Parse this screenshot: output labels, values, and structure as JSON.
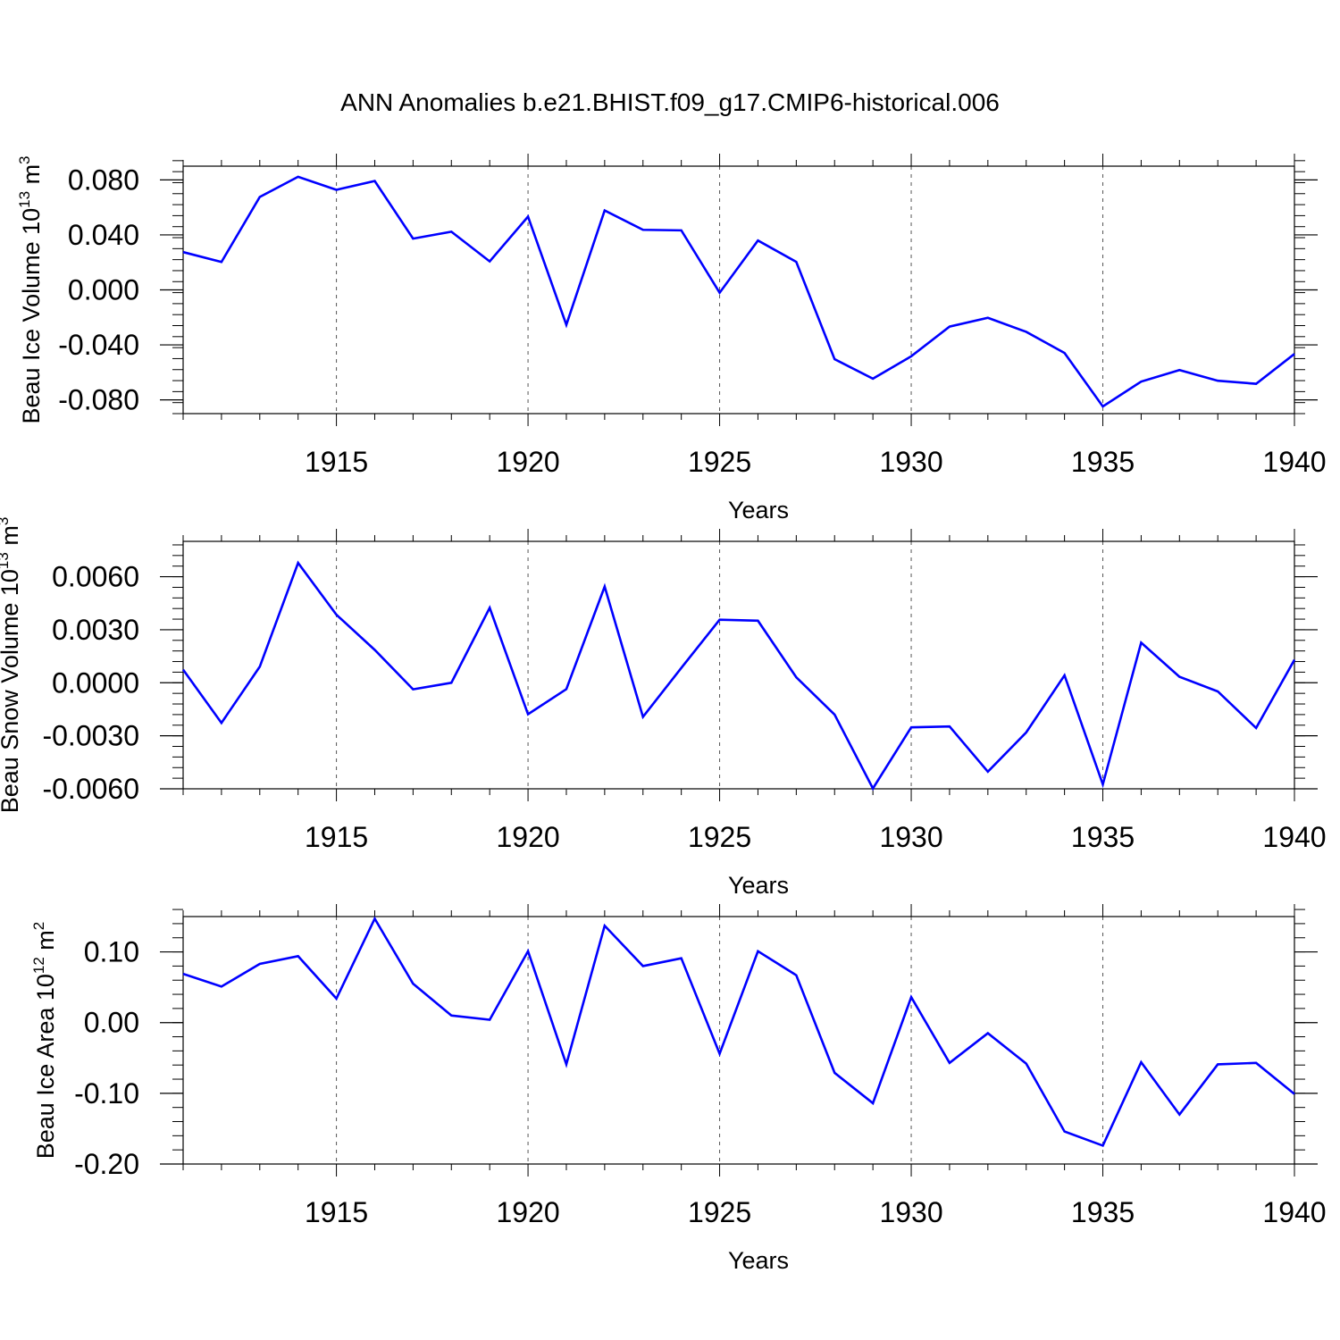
{
  "title": "ANN Anomalies b.e21.BHIST.f09_g17.CMIP6-historical.006",
  "line_color": "#0000ff",
  "chart_data": [
    {
      "type": "line",
      "ylabel": "Beau Ice Volume 10",
      "ylabel_exp": "13",
      "ylabel_unit": " m",
      "ylabel_unit_exp": "3",
      "xlabel": "Years",
      "xlim": [
        1911,
        1940
      ],
      "ylim": [
        -0.09,
        0.09
      ],
      "yticks": [
        -0.08,
        -0.04,
        0.0,
        0.04,
        0.08
      ],
      "ytick_labels": [
        "-0.080",
        "-0.040",
        "0.000",
        "0.040",
        "0.080"
      ],
      "yminor_step": 0.008,
      "xticks": [
        1915,
        1920,
        1925,
        1930,
        1935,
        1940
      ],
      "xtick_labels": [
        "1915",
        "1920",
        "1925",
        "1930",
        "1935",
        "1940"
      ],
      "x": [
        1911,
        1912,
        1913,
        1914,
        1915,
        1916,
        1917,
        1918,
        1919,
        1920,
        1921,
        1922,
        1923,
        1924,
        1925,
        1926,
        1927,
        1928,
        1929,
        1930,
        1931,
        1932,
        1933,
        1934,
        1935,
        1936,
        1937,
        1938,
        1939,
        1940
      ],
      "series": [
        {
          "name": "Beau Ice Volume",
          "values": [
            0.0275,
            0.0203,
            0.0676,
            0.0823,
            0.0728,
            0.0792,
            0.0373,
            0.0423,
            0.0207,
            0.0533,
            -0.0254,
            0.0578,
            0.0437,
            0.0433,
            -0.0021,
            0.0359,
            0.0204,
            -0.0504,
            -0.0646,
            -0.0483,
            -0.0267,
            -0.0203,
            -0.0305,
            -0.0459,
            -0.0848,
            -0.0667,
            -0.0583,
            -0.0661,
            -0.0683,
            -0.0466
          ]
        }
      ]
    },
    {
      "type": "line",
      "ylabel": "Beau Snow Volume 10",
      "ylabel_exp": "13",
      "ylabel_unit": " m",
      "ylabel_unit_exp": "3",
      "xlabel": "Years",
      "xlim": [
        1911,
        1940
      ],
      "ylim": [
        -0.006,
        0.008
      ],
      "yticks": [
        -0.006,
        -0.003,
        0.0,
        0.003,
        0.006
      ],
      "ytick_labels": [
        "-0.0060",
        "-0.0030",
        "0.0000",
        "0.0030",
        "0.0060"
      ],
      "yminor_step": 0.0006,
      "xticks": [
        1915,
        1920,
        1925,
        1930,
        1935,
        1940
      ],
      "xtick_labels": [
        "1915",
        "1920",
        "1925",
        "1930",
        "1935",
        "1940"
      ],
      "x": [
        1911,
        1912,
        1913,
        1914,
        1915,
        1916,
        1917,
        1918,
        1919,
        1920,
        1921,
        1922,
        1923,
        1924,
        1925,
        1926,
        1927,
        1928,
        1929,
        1930,
        1931,
        1932,
        1933,
        1934,
        1935,
        1936,
        1937,
        1938,
        1939,
        1940
      ],
      "series": [
        {
          "name": "Beau Snow Volume",
          "values": [
            0.00074,
            -0.00227,
            0.00091,
            0.00678,
            0.00385,
            0.00186,
            -0.00037,
            0.0,
            0.00424,
            -0.00178,
            -0.00036,
            0.00544,
            -0.00193,
            0.00084,
            0.00357,
            0.00351,
            0.00031,
            -0.0018,
            -0.00598,
            -0.00252,
            -0.00247,
            -0.00503,
            -0.00281,
            0.00042,
            -0.00575,
            0.00227,
            0.00034,
            -0.00049,
            -0.00256,
            0.0013
          ]
        }
      ]
    },
    {
      "type": "line",
      "ylabel": "Beau Ice Area 10",
      "ylabel_exp": "12",
      "ylabel_unit": " m",
      "ylabel_unit_exp": "2",
      "xlabel": "Years",
      "xlim": [
        1911,
        1940
      ],
      "ylim": [
        -0.2,
        0.15
      ],
      "yticks": [
        -0.2,
        -0.1,
        0.0,
        0.1
      ],
      "ytick_labels": [
        "-0.20",
        "-0.10",
        "0.00",
        "0.10"
      ],
      "yminor_step": 0.02,
      "xticks": [
        1915,
        1920,
        1925,
        1930,
        1935,
        1940
      ],
      "xtick_labels": [
        "1915",
        "1920",
        "1925",
        "1930",
        "1935",
        "1940"
      ],
      "x": [
        1911,
        1912,
        1913,
        1914,
        1915,
        1916,
        1917,
        1918,
        1919,
        1920,
        1921,
        1922,
        1923,
        1924,
        1925,
        1926,
        1927,
        1928,
        1929,
        1930,
        1931,
        1932,
        1933,
        1934,
        1935,
        1936,
        1937,
        1938,
        1939,
        1940
      ],
      "series": [
        {
          "name": "Beau Ice Area",
          "values": [
            0.069,
            0.051,
            0.083,
            0.094,
            0.034,
            0.147,
            0.055,
            0.01,
            0.004,
            0.101,
            -0.059,
            0.137,
            0.08,
            0.091,
            -0.044,
            0.101,
            0.067,
            -0.071,
            -0.114,
            0.036,
            -0.057,
            -0.015,
            -0.058,
            -0.154,
            -0.174,
            -0.056,
            -0.13,
            -0.059,
            -0.057,
            -0.101
          ]
        }
      ]
    }
  ]
}
